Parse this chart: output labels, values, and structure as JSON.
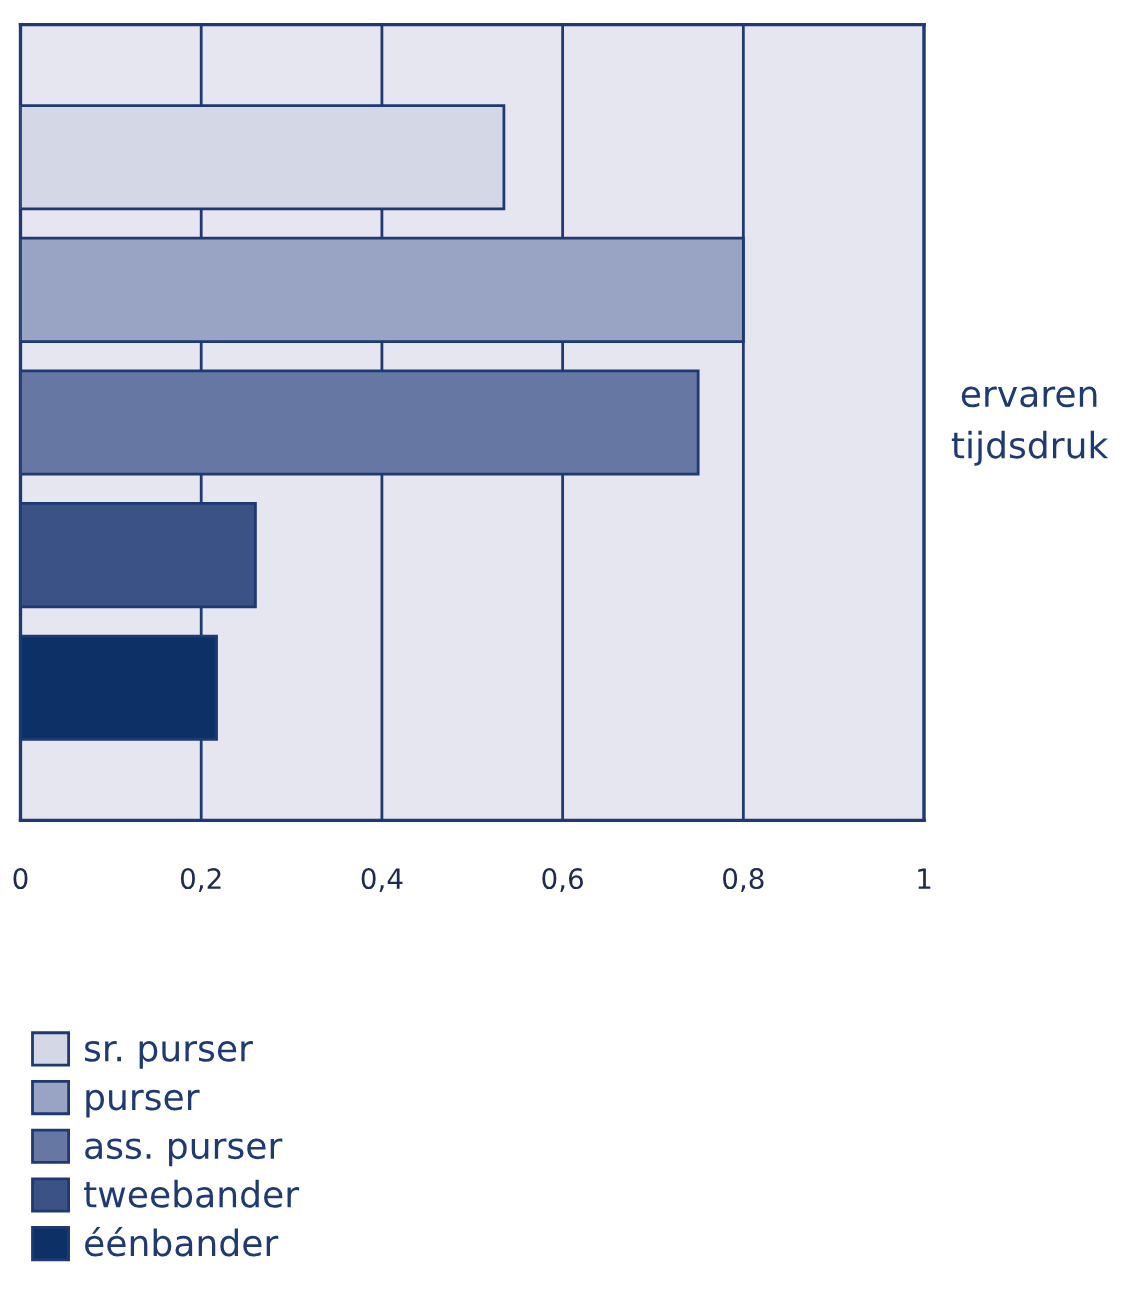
{
  "chart_data": {
    "type": "bar",
    "orientation": "horizontal",
    "ylabel": "ervaren tijdsdruk",
    "categories": [
      null
    ],
    "series": [
      {
        "name": "sr. purser",
        "color": "#d3d7e6",
        "values": [
          0.535
        ]
      },
      {
        "name": "purser",
        "color": "#99a3c4",
        "values": [
          0.8
        ]
      },
      {
        "name": "ass. purser",
        "color": "#6677a3",
        "values": [
          0.75
        ]
      },
      {
        "name": "tweebander",
        "color": "#3b5287",
        "values": [
          0.26
        ]
      },
      {
        "name": "éénbander",
        "color": "#0d3067",
        "values": [
          0.217
        ]
      }
    ],
    "xlim": [
      0,
      1
    ],
    "xticks": [
      0,
      {
        "value": 0.2,
        "label": "0,2"
      },
      {
        "value": 0.4,
        "label": "0,4"
      },
      {
        "value": 0.6,
        "label": "0,6"
      },
      {
        "value": 0.8,
        "label": "0,8"
      },
      1
    ],
    "grid": "x",
    "legend": "bottom"
  }
}
